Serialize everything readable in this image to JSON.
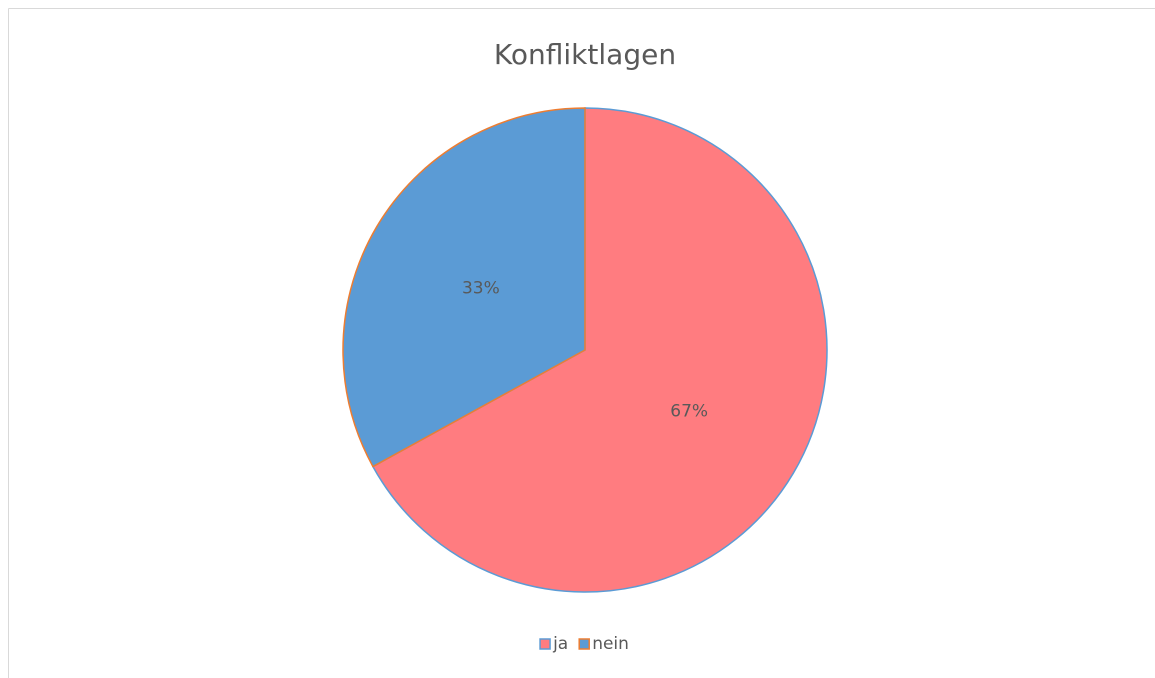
{
  "chart_data": {
    "type": "pie",
    "title": "Konfliktlagen",
    "categories": [
      "ja",
      "nein"
    ],
    "values": [
      67,
      33
    ],
    "value_labels": [
      "67%",
      "33%"
    ],
    "colors": [
      "#ff7c80",
      "#5b9bd5"
    ],
    "border_colors": [
      "#5b9bd5",
      "#ed7d31"
    ],
    "legend": "bottom"
  }
}
